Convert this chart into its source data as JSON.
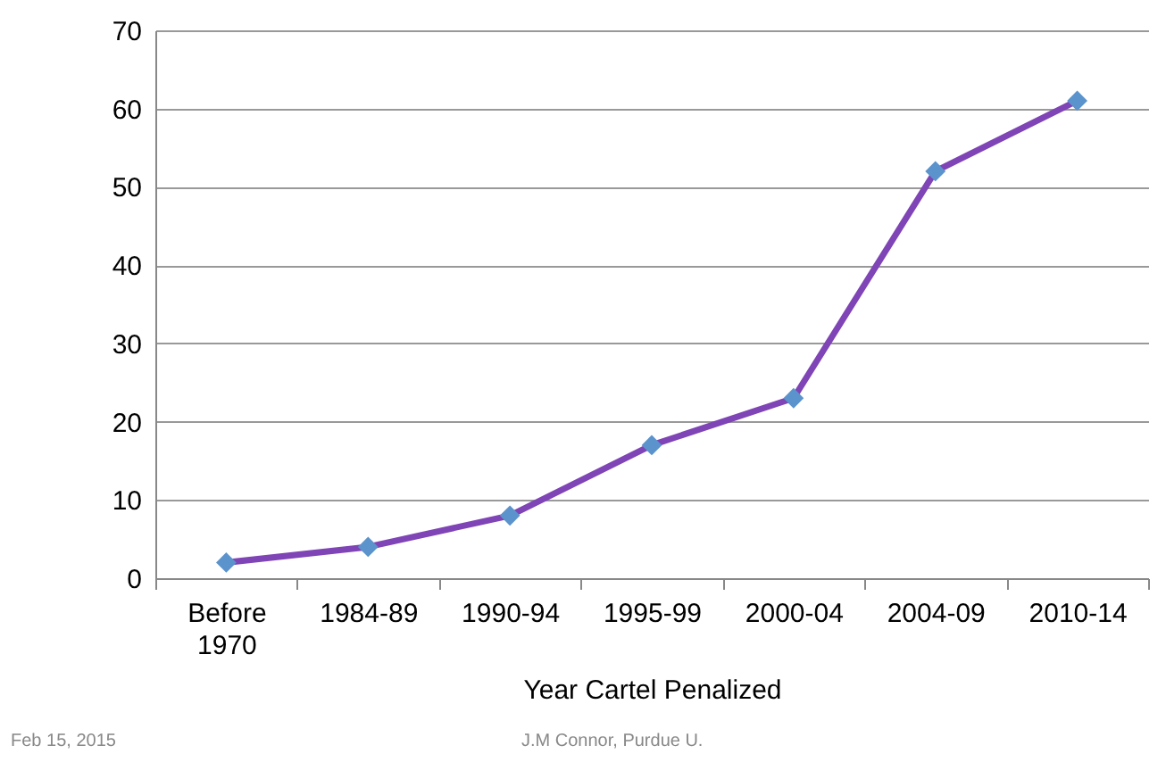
{
  "chart_data": {
    "type": "line",
    "xlabel": "Year Cartel Penalized",
    "categories": [
      "Before 1970",
      "1984-89",
      "1990-94",
      "1995-99",
      "2000-04",
      "2004-09",
      "2010-14"
    ],
    "series": [
      {
        "color": "#7f44b5",
        "values": [
          2,
          4,
          8,
          17,
          23,
          52,
          61
        ]
      }
    ],
    "ylim": [
      0,
      70
    ],
    "yticks": [
      0,
      10,
      20,
      30,
      40,
      50,
      60,
      70
    ],
    "grid": "y",
    "marker": "diamond",
    "line_style": "solid",
    "annotations": [
      "Feb 15, 2015",
      "J.M Connor, Purdue U."
    ]
  }
}
